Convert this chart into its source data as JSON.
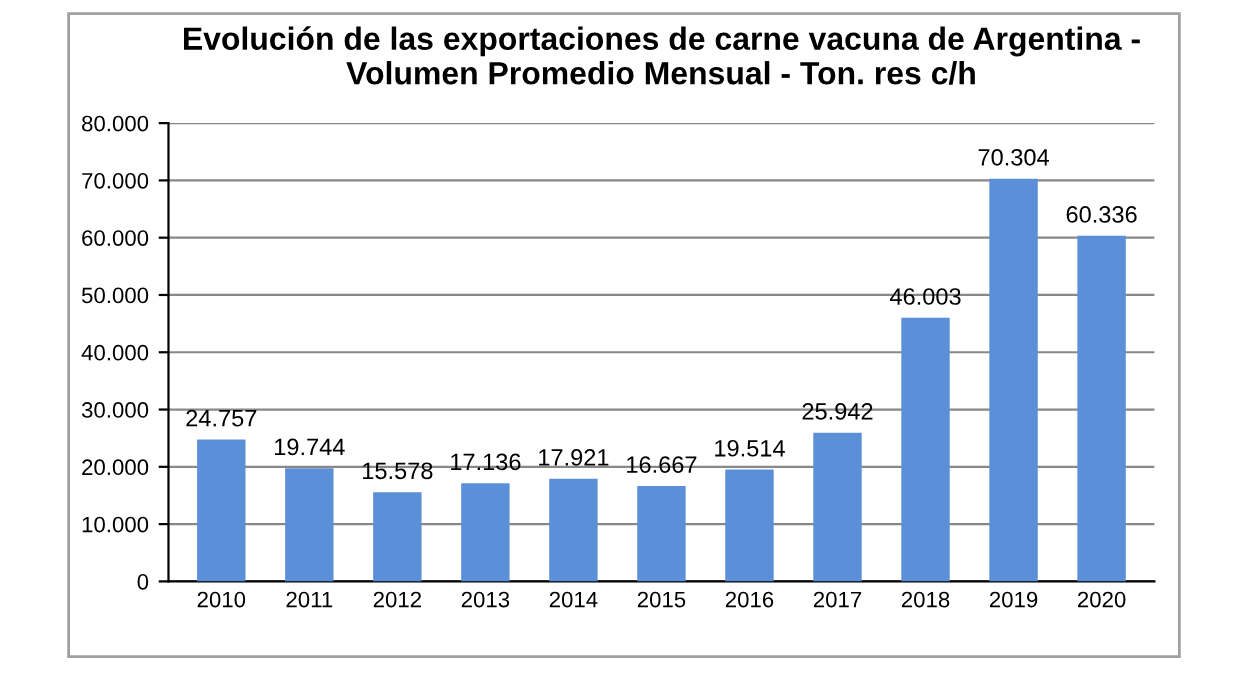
{
  "chart_data": {
    "type": "bar",
    "title": "Evolución de las exportaciones de carne vacuna de Argentina -\nVolumen Promedio Mensual - Ton. res c/h",
    "categories": [
      "2010",
      "2011",
      "2012",
      "2013",
      "2014",
      "2015",
      "2016",
      "2017",
      "2018",
      "2019",
      "2020"
    ],
    "values": [
      24757,
      19744,
      15578,
      17136,
      17921,
      16667,
      19514,
      25942,
      46003,
      70304,
      60336
    ],
    "value_labels": [
      "24.757",
      "19.744",
      "15.578",
      "17.136",
      "17.921",
      "16.667",
      "19.514",
      "25.942",
      "46.003",
      "70.304",
      "60.336"
    ],
    "color": "#5b8fd8",
    "ylim": [
      0,
      80000
    ],
    "yticks": [
      0,
      {
        "value": 10000,
        "label": "10.000"
      },
      {
        "value": 20000,
        "label": "20.000"
      },
      {
        "value": 30000,
        "label": "30.000"
      },
      {
        "value": 40000,
        "label": "40.000"
      },
      {
        "value": 50000,
        "label": "50.000"
      },
      {
        "value": 60000,
        "label": "60.000"
      },
      {
        "value": 70000,
        "label": "70.000"
      },
      {
        "value": 80000,
        "label": "80.000"
      }
    ],
    "grid": "y"
  }
}
